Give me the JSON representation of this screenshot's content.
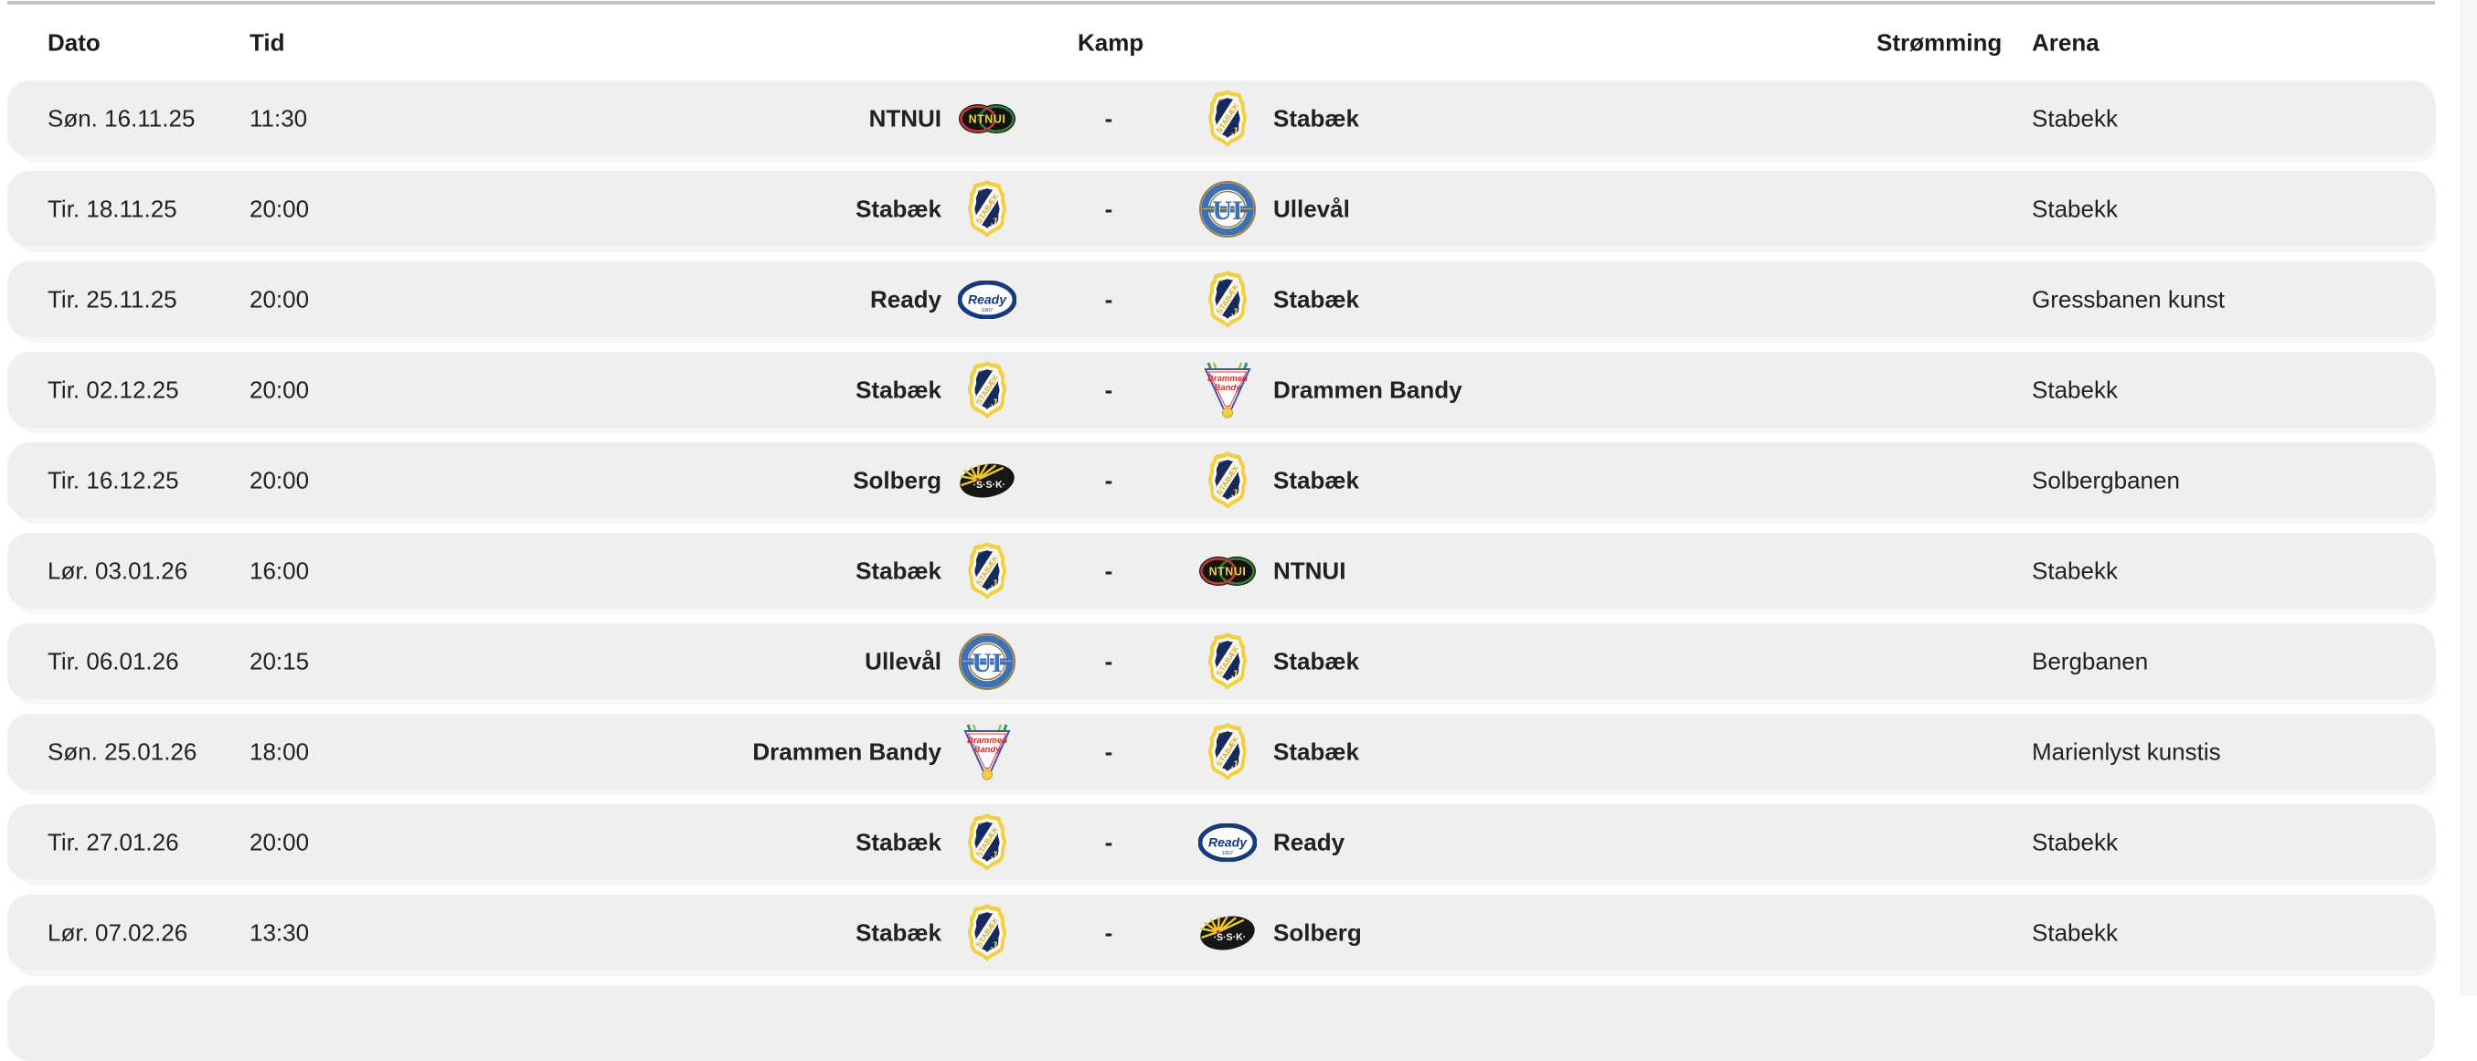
{
  "header": {
    "dato": "Dato",
    "tid": "Tid",
    "kamp": "Kamp",
    "stromming": "Strømming",
    "arena": "Arena"
  },
  "rows": [
    {
      "date": "Søn. 16.11.25",
      "time": "11:30",
      "home": {
        "name": "NTNUI",
        "logo": "ntnui"
      },
      "separator": "-",
      "away": {
        "name": "Stabæk",
        "logo": "stabaek"
      },
      "streaming": "",
      "arena": "Stabekk"
    },
    {
      "date": "Tir. 18.11.25",
      "time": "20:00",
      "home": {
        "name": "Stabæk",
        "logo": "stabaek"
      },
      "separator": "-",
      "away": {
        "name": "Ullevål",
        "logo": "ullevaal"
      },
      "streaming": "",
      "arena": "Stabekk"
    },
    {
      "date": "Tir. 25.11.25",
      "time": "20:00",
      "home": {
        "name": "Ready",
        "logo": "ready"
      },
      "separator": "-",
      "away": {
        "name": "Stabæk",
        "logo": "stabaek"
      },
      "streaming": "",
      "arena": "Gressbanen kunst"
    },
    {
      "date": "Tir. 02.12.25",
      "time": "20:00",
      "home": {
        "name": "Stabæk",
        "logo": "stabaek"
      },
      "separator": "-",
      "away": {
        "name": "Drammen Bandy",
        "logo": "drammen"
      },
      "streaming": "",
      "arena": "Stabekk"
    },
    {
      "date": "Tir. 16.12.25",
      "time": "20:00",
      "home": {
        "name": "Solberg",
        "logo": "solberg"
      },
      "separator": "-",
      "away": {
        "name": "Stabæk",
        "logo": "stabaek"
      },
      "streaming": "",
      "arena": "Solbergbanen"
    },
    {
      "date": "Lør. 03.01.26",
      "time": "16:00",
      "home": {
        "name": "Stabæk",
        "logo": "stabaek"
      },
      "separator": "-",
      "away": {
        "name": "NTNUI",
        "logo": "ntnui"
      },
      "streaming": "",
      "arena": "Stabekk"
    },
    {
      "date": "Tir. 06.01.26",
      "time": "20:15",
      "home": {
        "name": "Ullevål",
        "logo": "ullevaal"
      },
      "separator": "-",
      "away": {
        "name": "Stabæk",
        "logo": "stabaek"
      },
      "streaming": "",
      "arena": "Bergbanen"
    },
    {
      "date": "Søn. 25.01.26",
      "time": "18:00",
      "home": {
        "name": "Drammen Bandy",
        "logo": "drammen"
      },
      "separator": "-",
      "away": {
        "name": "Stabæk",
        "logo": "stabaek"
      },
      "streaming": "",
      "arena": "Marienlyst kunstis"
    },
    {
      "date": "Tir. 27.01.26",
      "time": "20:00",
      "home": {
        "name": "Stabæk",
        "logo": "stabaek"
      },
      "separator": "-",
      "away": {
        "name": "Ready",
        "logo": "ready"
      },
      "streaming": "",
      "arena": "Stabekk"
    },
    {
      "date": "Lør. 07.02.26",
      "time": "13:30",
      "home": {
        "name": "Stabæk",
        "logo": "stabaek"
      },
      "separator": "-",
      "away": {
        "name": "Solberg",
        "logo": "solberg"
      },
      "streaming": "",
      "arena": "Stabekk"
    }
  ],
  "colors": {
    "row_background": "#efefef",
    "page_background": "#ffffff",
    "text": "#212121",
    "header_text": "#1b1b1d",
    "top_divider": "#c3c3c3",
    "stabaek_navy": "#172a5e",
    "stabaek_yellow": "#f3cf45",
    "ntnui_yellow": "#f0d23c",
    "ntnui_red": "#c23b34",
    "ntnui_green": "#2f7d36",
    "ullevaal_blue": "#3e70b4",
    "ullevaal_gold": "#9a7d3f",
    "ready_navy": "#173a7c",
    "drammen_red": "#d32f2f",
    "drammen_green": "#2e9e4f",
    "solberg_black": "#161616",
    "solberg_yellow": "#f0c929"
  }
}
